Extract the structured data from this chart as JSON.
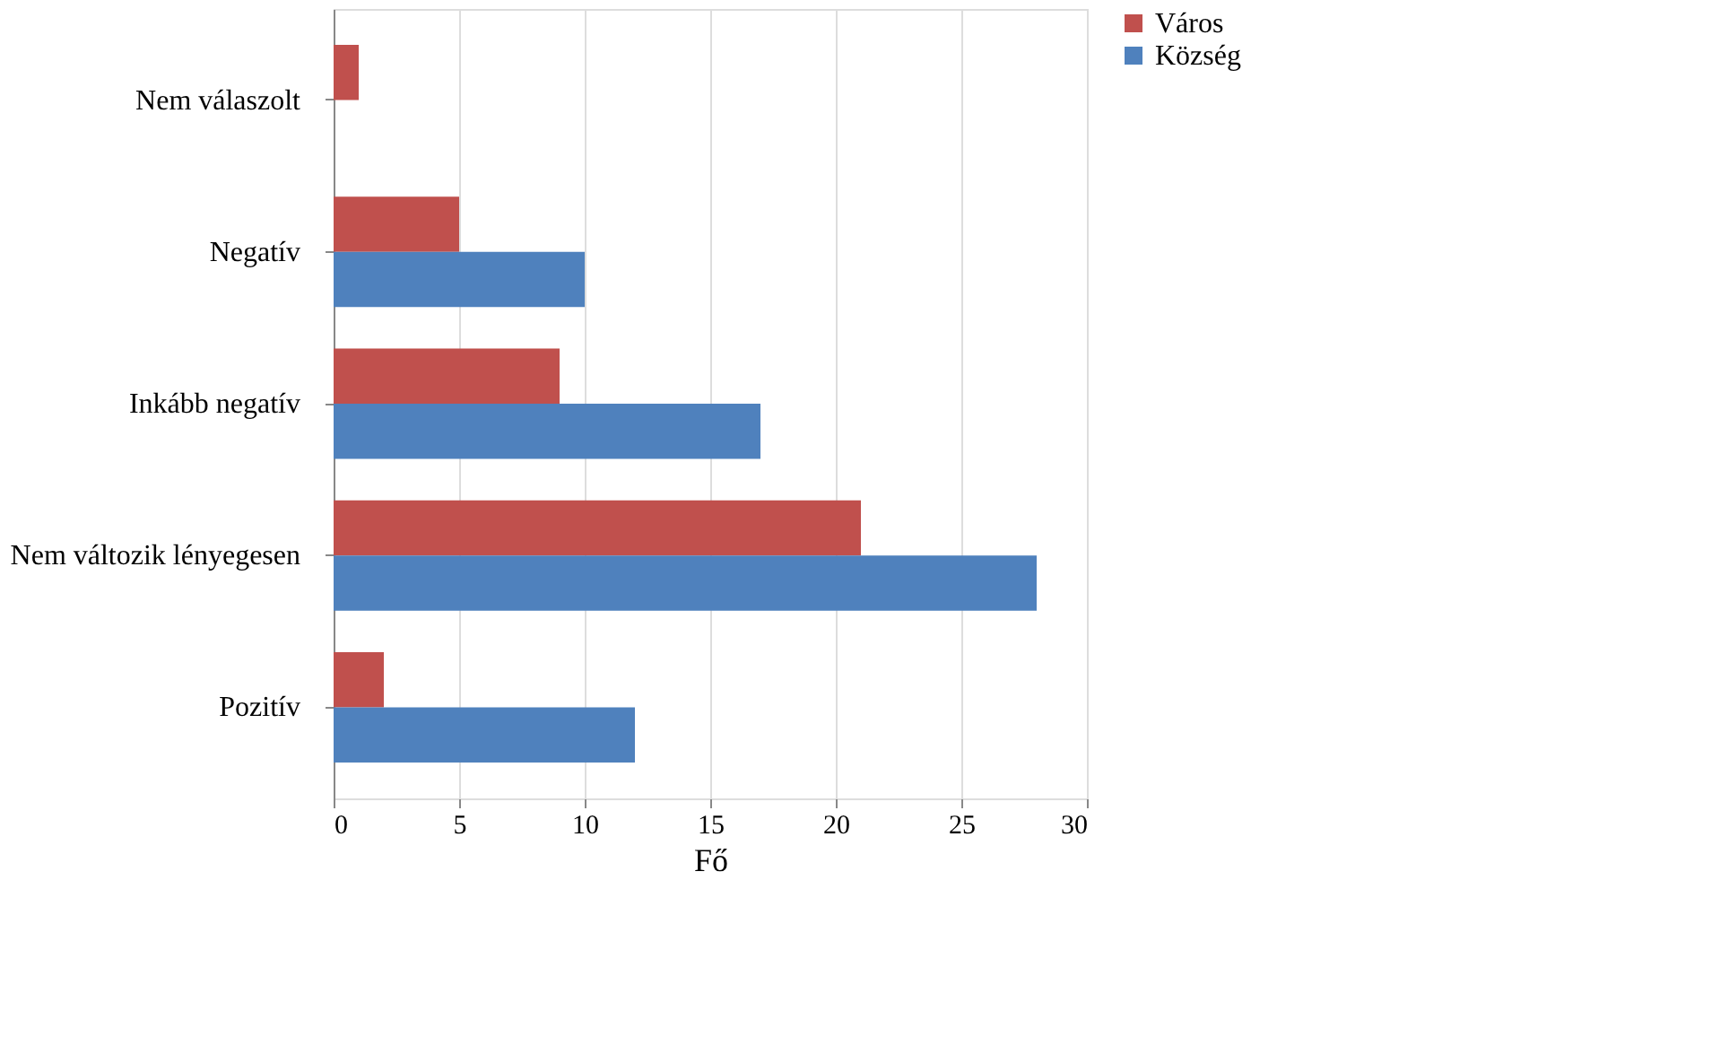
{
  "chart_data": {
    "type": "bar",
    "orientation": "horizontal",
    "xlabel": "Fő",
    "categories": [
      "Nem válaszolt",
      "Negatív",
      "Inkább negatív",
      "Nem változik lényegesen",
      "Pozitív"
    ],
    "series": [
      {
        "name": "Város",
        "color": "#c0504d",
        "values": [
          1,
          5,
          9,
          21,
          2
        ]
      },
      {
        "name": "Község",
        "color": "#4f81bd",
        "values": [
          0,
          10,
          17,
          28,
          12
        ]
      }
    ],
    "xlim": [
      0,
      30
    ],
    "xticks": [
      0,
      5,
      10,
      15,
      20,
      25,
      30
    ],
    "grid": "x",
    "legend": "right"
  }
}
